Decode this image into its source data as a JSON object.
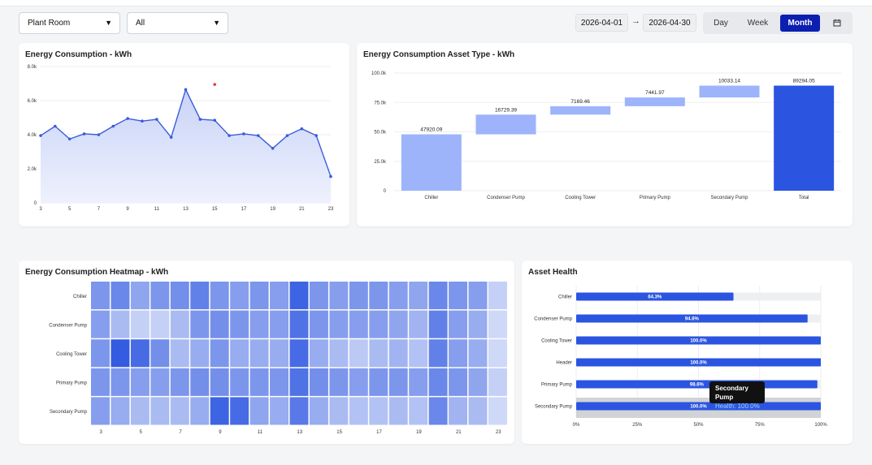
{
  "filters": {
    "location": "Plant Room",
    "asset": "All"
  },
  "date_range": {
    "start": "2026-04-01",
    "end": "2026-04-30"
  },
  "period": {
    "options": [
      "Day",
      "Week",
      "Month"
    ],
    "selected": "Month"
  },
  "colors": {
    "accent": "#0b1fb0",
    "line": "#3a5bdc",
    "bar_light": "#9db4fb",
    "bar_dark": "#2b55e0"
  },
  "line_chart": {
    "title": "Energy Consumption - kWh"
  },
  "waterfall": {
    "title": "Energy Consumption Asset Type - kWh"
  },
  "heatmap": {
    "title": "Energy Consumption Heatmap - kWh"
  },
  "asset_health": {
    "title": "Asset Health",
    "tooltip": {
      "name": "Secondary Pump",
      "text": "Health: 100.0%"
    }
  },
  "chart_data": [
    {
      "type": "area",
      "title": "Energy Consumption - kWh",
      "x": [
        3,
        4,
        5,
        6,
        7,
        8,
        9,
        10,
        11,
        12,
        13,
        14,
        15,
        16,
        17,
        18,
        19,
        20,
        21,
        22,
        23
      ],
      "x_ticks": [
        "3",
        "5",
        "7",
        "9",
        "11",
        "13",
        "15",
        "17",
        "19",
        "21",
        "23"
      ],
      "y": [
        3950,
        4500,
        3750,
        4050,
        4000,
        4500,
        4950,
        4800,
        4900,
        3850,
        6650,
        4900,
        4850,
        3950,
        4050,
        3950,
        3200,
        3950,
        4350,
        3950,
        1550
      ],
      "y_ticks": [
        "0",
        "2.0k",
        "4.0k",
        "6.0k",
        "8.0k"
      ],
      "ylim": [
        0,
        8000
      ],
      "extra_point": {
        "x": 15,
        "y": 6950
      }
    },
    {
      "type": "bar",
      "title": "Energy Consumption Asset Type - kWh",
      "categories": [
        "Chiller",
        "Condenser Pump",
        "Cooling Tower",
        "Primary Pump",
        "Secondary Pump",
        "Total"
      ],
      "values": [
        47920.09,
        16729.39,
        7169.46,
        7441.97,
        10033.14,
        89294.05
      ],
      "labels": [
        "47920.09",
        "16729.39",
        "7169.46",
        "7441.97",
        "10033.14",
        "89294.05"
      ],
      "y_ticks": [
        "0",
        "25.0k",
        "50.0k",
        "75.0k",
        "100.0k"
      ],
      "ylim": [
        0,
        100000
      ]
    },
    {
      "type": "heatmap",
      "title": "Energy Consumption Heatmap - kWh",
      "rows": [
        "Chiller",
        "Condenser Pump",
        "Cooling Tower",
        "Primary Pump",
        "Secondary Pump"
      ],
      "x_ticks": [
        "3",
        "5",
        "7",
        "9",
        "11",
        "13",
        "15",
        "17",
        "19",
        "21",
        "23"
      ],
      "intensity": [
        [
          0.55,
          0.65,
          0.45,
          0.55,
          0.6,
          0.7,
          0.55,
          0.5,
          0.55,
          0.5,
          0.9,
          0.55,
          0.5,
          0.55,
          0.55,
          0.5,
          0.45,
          0.65,
          0.55,
          0.5,
          0.15
        ],
        [
          0.5,
          0.3,
          0.15,
          0.15,
          0.3,
          0.55,
          0.6,
          0.55,
          0.5,
          0.5,
          0.8,
          0.55,
          0.5,
          0.5,
          0.5,
          0.45,
          0.35,
          0.7,
          0.5,
          0.4,
          0.1
        ],
        [
          0.55,
          0.95,
          0.85,
          0.6,
          0.3,
          0.4,
          0.55,
          0.4,
          0.4,
          0.4,
          0.85,
          0.4,
          0.3,
          0.2,
          0.3,
          0.35,
          0.25,
          0.7,
          0.5,
          0.4,
          0.1
        ],
        [
          0.55,
          0.55,
          0.5,
          0.5,
          0.55,
          0.6,
          0.6,
          0.55,
          0.55,
          0.55,
          0.8,
          0.6,
          0.55,
          0.5,
          0.55,
          0.55,
          0.5,
          0.65,
          0.55,
          0.45,
          0.15
        ],
        [
          0.5,
          0.4,
          0.3,
          0.3,
          0.3,
          0.4,
          0.9,
          0.85,
          0.45,
          0.4,
          0.75,
          0.4,
          0.3,
          0.25,
          0.25,
          0.3,
          0.25,
          0.65,
          0.35,
          0.3,
          0.1
        ]
      ]
    },
    {
      "type": "bar",
      "title": "Asset Health",
      "categories": [
        "Chiller",
        "Condenser Pump",
        "Cooling Tower",
        "Header",
        "Primary Pump",
        "Secondary Pump"
      ],
      "values": [
        64.3,
        94.6,
        100.0,
        100.0,
        98.6,
        100.0
      ],
      "labels": [
        "64.3%",
        "94.6%",
        "100.0%",
        "100.0%",
        "98.6%",
        "100.0%"
      ],
      "x_ticks": [
        "0%",
        "25%",
        "50%",
        "75%",
        "100%"
      ],
      "xlim": [
        0,
        100
      ]
    }
  ]
}
